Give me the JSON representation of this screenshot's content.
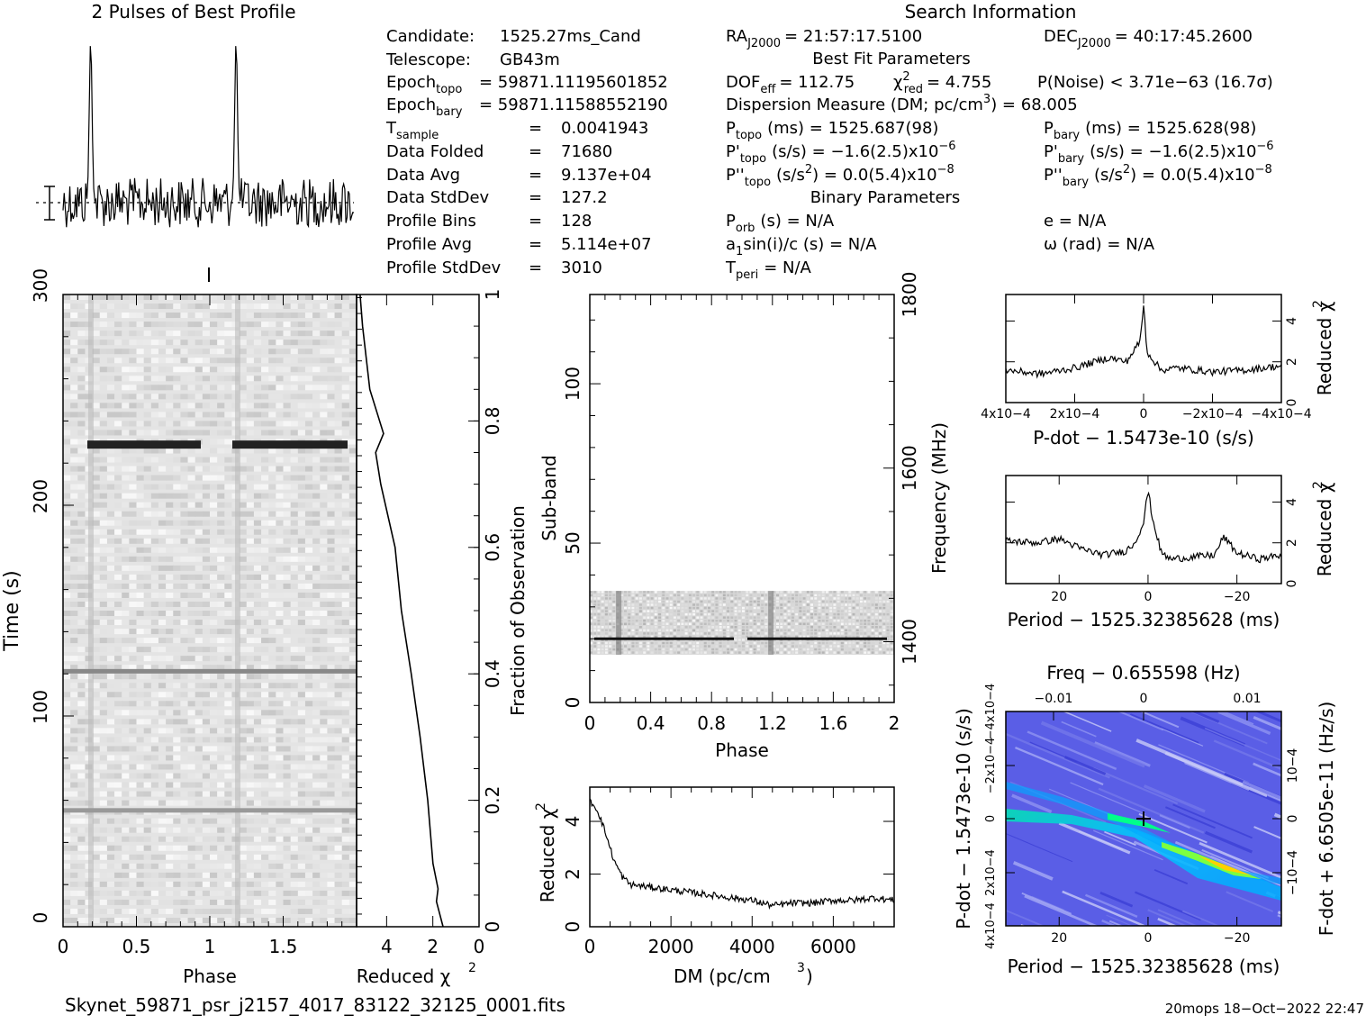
{
  "header": {
    "profile_title": "2 Pulses of Best Profile",
    "search_title": "Search Information",
    "candidate_label": "Candidate:",
    "candidate_value": "1525.27ms_Cand",
    "telescope_label": "Telescope:",
    "telescope_value": "GB43m",
    "epoch_topo_label": "Epoch",
    "epoch_topo_sub": "topo",
    "epoch_topo_value": "= 59871.11195601852",
    "epoch_bary_label": "Epoch",
    "epoch_bary_sub": "bary",
    "epoch_bary_value": "= 59871.11588552190",
    "tsample_label": "T",
    "tsample_sub": "sample",
    "tsample_value": "0.0041943",
    "data_folded_label": "Data Folded",
    "data_folded_value": "71680",
    "data_avg_label": "Data Avg",
    "data_avg_value": "9.137e+04",
    "data_std_label": "Data StdDev",
    "data_std_value": "127.2",
    "profile_bins_label": "Profile Bins",
    "profile_bins_value": "128",
    "profile_avg_label": "Profile Avg",
    "profile_avg_value": "5.114e+07",
    "profile_std_label": "Profile StdDev",
    "profile_std_value": "3010",
    "eq": "=",
    "ra_label": "RA",
    "ra_sub": "J2000",
    "ra_value": "= 21:57:17.5100",
    "dec_label": "DEC",
    "dec_sub": "J2000",
    "dec_value": "= 40:17:45.2600",
    "best_fit_title": "Best Fit Parameters",
    "dof_label": "DOF",
    "dof_sub": "eff",
    "dof_value": "= 112.75",
    "chi_label": "χ",
    "chi_sup": "2",
    "chi_sub": "red",
    "chi_value": "= 4.755",
    "pnoise": "P(Noise) < 3.71e−63  (16.7σ)",
    "dm_line": "Dispersion Measure (DM; pc/cm",
    "dm_sup": "3",
    "dm_value": ") = 68.005",
    "ptopo_label": "P",
    "ptopo_sub": "topo",
    "ptopo_value": "(ms) =  1525.687(98)",
    "pbary_label": "P",
    "pbary_sub": "bary",
    "pbary_value": "(ms) =  1525.628(98)",
    "pdtopo_label": "P'",
    "pdtopo_sub": "topo",
    "pdtopo_value": "(s/s) = −1.6(2.5)x10",
    "pdtopo_exp": "−6",
    "pdbary_label": "P'",
    "pdbary_sub": "bary",
    "pdbary_value": "(s/s) = −1.6(2.5)x10",
    "pdbary_exp": "−6",
    "pddtopo_label": "P''",
    "pddtopo_sub": "topo",
    "pddtopo_value": "(s/s",
    "pddtopo_value2": ") = 0.0(5.4)x10",
    "pddtopo_exp": "−8",
    "pddbary_label": "P''",
    "pddbary_sub": "bary",
    "pddbary_value": "(s/s",
    "pddbary_value2": ") = 0.0(5.4)x10",
    "pddbary_exp": "−8",
    "sq": "2",
    "binary_title": "Binary Parameters",
    "porb_label": "P",
    "porb_sub": "orb",
    "porb_value": "(s) = N/A",
    "e_value": "e = N/A",
    "a1_label": "a",
    "a1_sub": "1",
    "a1_value": "sin(i)/c (s) = N/A",
    "omega_value": "ω (rad) = N/A",
    "tperi_label": "T",
    "tperi_sub": "peri",
    "tperi_value": "= N/A"
  },
  "footer": {
    "filename": "Skynet_59871_psr_j2157_4017_83122_32125_0001.fits",
    "stamp": "20mops 18−Oct−2022 22:47"
  },
  "chart_data": [
    {
      "type": "line",
      "name": "profile",
      "title": "2 Pulses of Best Profile",
      "x_range": [
        0,
        2
      ],
      "peaks_at_phase": [
        0.19,
        1.19
      ]
    },
    {
      "type": "heatmap",
      "name": "time-phase",
      "xlabel": "Phase",
      "ylabel": "Time (s)",
      "xticks": [
        "0",
        "0.5",
        "1",
        "1.5"
      ],
      "yticks": [
        "0",
        "100",
        "200",
        "300"
      ],
      "xlim": [
        0,
        2
      ],
      "ylim": [
        0,
        300
      ],
      "bright_rows_time_s": [
        229,
        121,
        55
      ]
    },
    {
      "type": "line",
      "name": "reduced-chi2-vs-fraction",
      "xlabel": "Reduced χ2",
      "ylabel": "Fraction of Observation",
      "xticks": [
        "4",
        "2",
        "0"
      ],
      "yticks": [
        "0",
        "0.2",
        "0.4",
        "0.6",
        "0.8",
        "1"
      ],
      "xlim": [
        5.3,
        0
      ],
      "ylim": [
        0,
        1
      ],
      "points": [
        [
          1.5,
          0
        ],
        [
          1.9,
          0.04
        ],
        [
          1.8,
          0.06
        ],
        [
          2.0,
          0.1
        ],
        [
          2.2,
          0.2
        ],
        [
          2.6,
          0.3
        ],
        [
          3.0,
          0.4
        ],
        [
          3.3,
          0.5
        ],
        [
          3.7,
          0.6
        ],
        [
          4.2,
          0.7
        ],
        [
          4.5,
          0.75
        ],
        [
          4.2,
          0.78
        ],
        [
          4.8,
          0.85
        ],
        [
          5.0,
          0.95
        ],
        [
          5.2,
          1.0
        ]
      ]
    },
    {
      "type": "heatmap",
      "name": "subband-phase",
      "xlabel": "Phase",
      "ylabel": "Sub-band",
      "y2label": "Frequency (MHz)",
      "xticks": [
        "0",
        "0.4",
        "0.8",
        "1.2",
        "1.6",
        "2"
      ],
      "yticks": [
        "0",
        "50",
        "100"
      ],
      "y2ticks": [
        "1400",
        "1600",
        "1800"
      ],
      "xlim": [
        0,
        2
      ],
      "ylim": [
        0,
        128
      ],
      "data_band_subbands": [
        15,
        35
      ],
      "bright_subband": 20
    },
    {
      "type": "line",
      "name": "dm-curve",
      "xlabel": "DM (pc/cm3)",
      "ylabel": "Reduced χ2",
      "xticks": [
        "0",
        "2000",
        "4000",
        "6000"
      ],
      "yticks": [
        "0",
        "2",
        "4"
      ],
      "xlim": [
        0,
        7500
      ],
      "ylim": [
        0,
        5.3
      ],
      "x": [
        0,
        200,
        400,
        600,
        800,
        1000,
        1500,
        2000,
        2500,
        3000,
        3500,
        4000,
        4500,
        5000,
        5500,
        6000,
        6500,
        7000,
        7500
      ],
      "values": [
        4.8,
        4.4,
        3.5,
        2.5,
        1.9,
        1.6,
        1.5,
        1.4,
        1.3,
        1.2,
        1.1,
        1.0,
        0.8,
        0.9,
        0.9,
        1.0,
        1.0,
        1.1,
        1.0
      ]
    },
    {
      "type": "line",
      "name": "pdot-curve",
      "xlabel": "P-dot − 1.5473e-10 (s/s)",
      "ylabel": "Reduced χ2",
      "xticks": [
        "4x10−4",
        "2x10−4",
        "0",
        "−2x10−4",
        "−4x10−4"
      ],
      "yticks": [
        "0",
        "2",
        "4"
      ],
      "xlim": [
        0.0004,
        -0.0004
      ],
      "ylim": [
        0,
        5.3
      ],
      "x": [
        0.0004,
        0.0003,
        0.0002,
        0.0001,
        5e-05,
        1e-05,
        0,
        -1e-05,
        -5e-05,
        -0.0001,
        -0.0002,
        -0.0003,
        -0.0004
      ],
      "values": [
        1.6,
        1.4,
        1.7,
        2.2,
        2.0,
        3.0,
        4.8,
        2.5,
        1.6,
        1.7,
        1.5,
        1.6,
        1.8
      ]
    },
    {
      "type": "line",
      "name": "period-curve",
      "xlabel": "Period − 1525.32385628 (ms)",
      "ylabel": "Reduced χ2",
      "xticks": [
        "20",
        "0",
        "−20"
      ],
      "yticks": [
        "0",
        "2",
        "4"
      ],
      "xlim": [
        32,
        -30
      ],
      "ylim": [
        0,
        5.3
      ],
      "x": [
        32,
        25,
        20,
        15,
        10,
        5,
        3,
        1,
        0,
        -1,
        -3,
        -5,
        -10,
        -15,
        -17,
        -20,
        -25,
        -30
      ],
      "values": [
        2.1,
        2.0,
        2.2,
        1.7,
        1.4,
        1.6,
        2.0,
        3.0,
        4.6,
        3.2,
        1.5,
        1.2,
        1.3,
        1.4,
        2.3,
        1.5,
        1.2,
        1.4
      ]
    },
    {
      "type": "heatmap",
      "name": "period-pdot",
      "title": "Freq − 0.655598 (Hz)",
      "xlabel": "Period − 1525.32385628 (ms)",
      "ylabel": "P-dot − 1.5473e-10 (s/s)",
      "y2label": "F-dot + 6.6505e-11 (Hz/s)",
      "xticks": [
        "20",
        "0",
        "−20"
      ],
      "x2ticks": [
        "−0.01",
        "0",
        "0.01"
      ],
      "yticks": [
        "4x10−4",
        "2x10−4",
        "0",
        "−2x10−4",
        "−4x10−4"
      ],
      "y2ticks": [
        "10−4",
        "0",
        "−10−4"
      ],
      "best_fit": [
        0,
        0
      ]
    }
  ]
}
